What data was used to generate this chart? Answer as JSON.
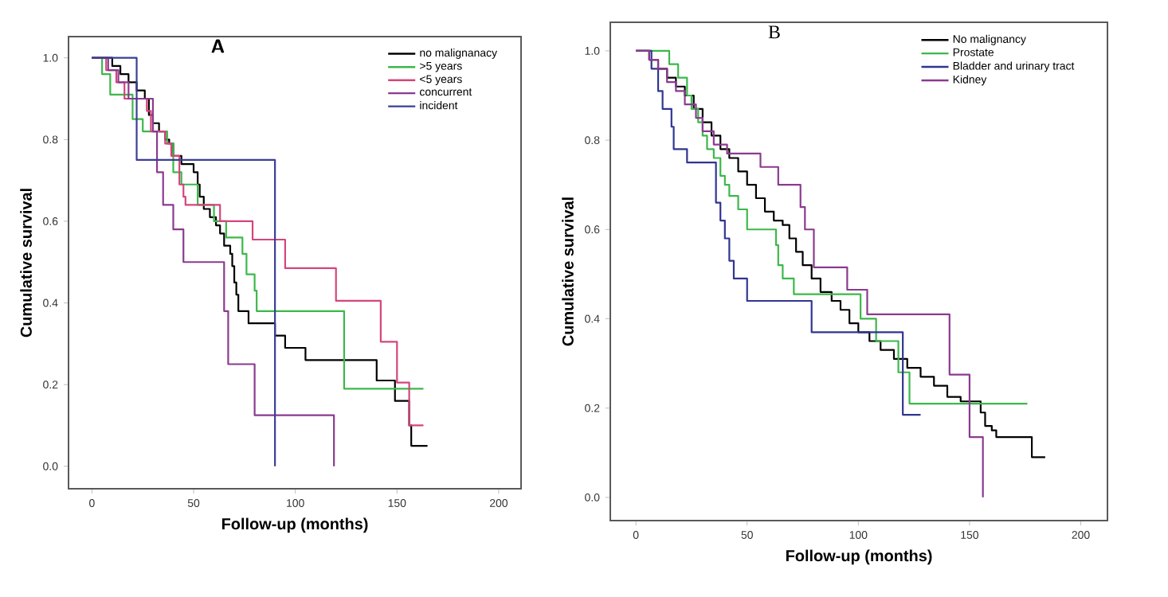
{
  "chart_data": [
    {
      "type": "step",
      "title": "A",
      "xlabel": "Follow-up (months)",
      "ylabel": "Cumulative survival",
      "legend": "top right",
      "xlim": [
        -11.5,
        211
      ],
      "ylim": [
        -0.055,
        1.052
      ],
      "xticks": [
        0,
        50,
        100,
        150,
        200
      ],
      "yticks": [
        {
          "value": 0,
          "label": "0.0"
        },
        {
          "value": 0.2,
          "label": "0.2"
        },
        {
          "value": 0.4,
          "label": "0.4"
        },
        {
          "value": 0.6,
          "label": "0.6"
        },
        {
          "value": 0.8,
          "label": "0.8"
        },
        {
          "value": 1,
          "label": "1.0"
        }
      ],
      "series": [
        {
          "name": "no malignanacy",
          "color": "#000000",
          "x": [
            0,
            10,
            14,
            18,
            22,
            26,
            28,
            30,
            33,
            36,
            38,
            40,
            44,
            50,
            52,
            53,
            55,
            58,
            61,
            63,
            65,
            68,
            69,
            70,
            71,
            72,
            77,
            90,
            95,
            105,
            140,
            149,
            156,
            157,
            165
          ],
          "values": [
            1.0,
            0.98,
            0.96,
            0.94,
            0.92,
            0.9,
            0.86,
            0.84,
            0.82,
            0.8,
            0.79,
            0.76,
            0.74,
            0.72,
            0.69,
            0.66,
            0.63,
            0.61,
            0.59,
            0.57,
            0.54,
            0.52,
            0.49,
            0.45,
            0.42,
            0.38,
            0.35,
            0.32,
            0.29,
            0.26,
            0.21,
            0.16,
            0.1,
            0.05,
            0.05
          ]
        },
        {
          "name": ">5 years",
          "color": "#3cb84a",
          "x": [
            0,
            5,
            9,
            20,
            25,
            37,
            40,
            44,
            52,
            60,
            66,
            74,
            76,
            80,
            81,
            124,
            163
          ],
          "values": [
            1.0,
            0.96,
            0.91,
            0.85,
            0.82,
            0.79,
            0.72,
            0.69,
            0.64,
            0.6,
            0.56,
            0.52,
            0.47,
            0.43,
            0.38,
            0.19,
            0.19
          ]
        },
        {
          "name": "<5 years",
          "color": "#d4457c",
          "x": [
            0,
            7,
            12,
            16,
            27,
            29,
            36,
            39,
            43,
            45,
            46,
            63,
            79,
            95,
            120,
            142,
            150,
            156,
            163
          ],
          "values": [
            1.0,
            0.97,
            0.94,
            0.9,
            0.87,
            0.82,
            0.79,
            0.76,
            0.69,
            0.66,
            0.64,
            0.6,
            0.555,
            0.485,
            0.405,
            0.305,
            0.205,
            0.1,
            0.1
          ]
        },
        {
          "name": "concurrent",
          "color": "#8b3a8f",
          "x": [
            0,
            8,
            13,
            18,
            30,
            32,
            35,
            40,
            45,
            65,
            67,
            80,
            119,
            119
          ],
          "values": [
            1.0,
            0.97,
            0.94,
            0.9,
            0.82,
            0.72,
            0.64,
            0.58,
            0.5,
            0.38,
            0.25,
            0.125,
            0.125,
            0
          ]
        },
        {
          "name": "incident",
          "color": "#3b3f94",
          "x": [
            0,
            22,
            90,
            90
          ],
          "values": [
            1.0,
            0.75,
            0.75,
            0
          ]
        }
      ]
    },
    {
      "type": "step",
      "title": "B",
      "xlabel": "Follow-up (months)",
      "ylabel": "Cumulative survival",
      "legend": "top right",
      "xlim": [
        -11.5,
        212
      ],
      "ylim": [
        -0.052,
        1.064
      ],
      "xticks": [
        0,
        50,
        100,
        150,
        200
      ],
      "yticks": [
        {
          "value": 0,
          "label": "0.0"
        },
        {
          "value": 0.2,
          "label": "0.2"
        },
        {
          "value": 0.4,
          "label": "0.4"
        },
        {
          "value": 0.6,
          "label": "0.6"
        },
        {
          "value": 0.8,
          "label": "0.8"
        },
        {
          "value": 1,
          "label": "1.0"
        }
      ],
      "series": [
        {
          "name": "No malignancy",
          "color": "#000000",
          "x": [
            0,
            6,
            10,
            14,
            18,
            22,
            26,
            30,
            34,
            38,
            42,
            46,
            50,
            54,
            58,
            62,
            66,
            69,
            72,
            75,
            79,
            83,
            88,
            92,
            96,
            100,
            105,
            110,
            116,
            122,
            128,
            134,
            140,
            146,
            150,
            155,
            157,
            160,
            162,
            178,
            184
          ],
          "values": [
            1.0,
            0.98,
            0.96,
            0.94,
            0.92,
            0.9,
            0.87,
            0.84,
            0.81,
            0.78,
            0.76,
            0.73,
            0.7,
            0.67,
            0.64,
            0.62,
            0.61,
            0.58,
            0.55,
            0.52,
            0.49,
            0.46,
            0.44,
            0.42,
            0.39,
            0.37,
            0.35,
            0.33,
            0.31,
            0.29,
            0.27,
            0.25,
            0.225,
            0.215,
            0.215,
            0.19,
            0.16,
            0.15,
            0.135,
            0.09,
            0.09
          ]
        },
        {
          "name": "Prostate",
          "color": "#3cb84a",
          "x": [
            0,
            15,
            19,
            23,
            25,
            28,
            30,
            32,
            35,
            38,
            40,
            42,
            46,
            50,
            63,
            64,
            66,
            71,
            101,
            108,
            118,
            123,
            176
          ],
          "values": [
            1.0,
            0.97,
            0.94,
            0.9,
            0.87,
            0.84,
            0.81,
            0.78,
            0.76,
            0.72,
            0.7,
            0.675,
            0.645,
            0.6,
            0.565,
            0.52,
            0.49,
            0.455,
            0.4,
            0.35,
            0.28,
            0.21,
            0.21
          ]
        },
        {
          "name": "Bladder and urinary tract",
          "color": "#2f3590",
          "x": [
            0,
            7,
            10,
            12,
            16,
            17,
            23,
            36,
            38,
            40,
            42,
            44,
            50,
            79,
            120,
            128
          ],
          "values": [
            1.0,
            0.96,
            0.91,
            0.87,
            0.83,
            0.78,
            0.75,
            0.66,
            0.62,
            0.58,
            0.53,
            0.49,
            0.44,
            0.37,
            0.185,
            0.185
          ]
        },
        {
          "name": "Kidney",
          "color": "#8b3a8f",
          "x": [
            0,
            6,
            10,
            14,
            18,
            22,
            27,
            30,
            35,
            41,
            56,
            64,
            74,
            76,
            80,
            95,
            104,
            141,
            150,
            156,
            156
          ],
          "values": [
            1.0,
            0.98,
            0.96,
            0.93,
            0.91,
            0.88,
            0.85,
            0.82,
            0.79,
            0.77,
            0.74,
            0.7,
            0.65,
            0.6,
            0.515,
            0.465,
            0.41,
            0.275,
            0.135,
            0.135,
            0
          ]
        }
      ]
    }
  ]
}
